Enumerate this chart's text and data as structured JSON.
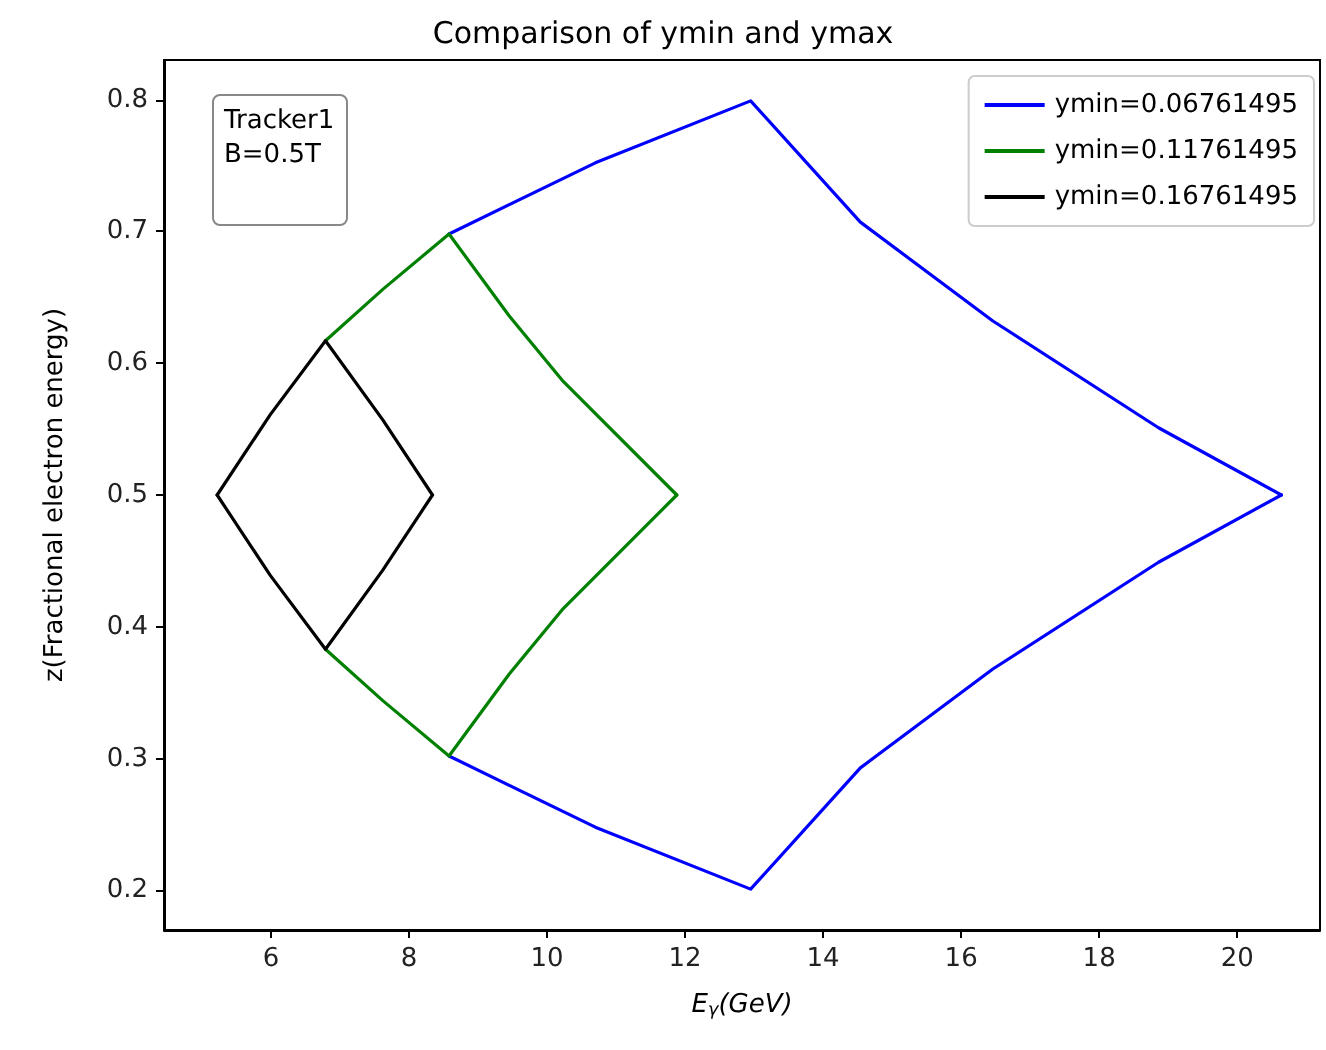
{
  "chart_data": {
    "type": "line",
    "title": "Comparison of ymin and ymax",
    "xlabel": "E$_{γ}$(GeV)",
    "ylabel": "z(Fractional electron energy)",
    "annotations": [
      "Tracker1\nB=0.5T"
    ],
    "xlim": [
      4.45,
      21.2
    ],
    "xticks": [
      6,
      8,
      10,
      12,
      14,
      16,
      18,
      20
    ],
    "ylim": [
      0.17,
      0.83
    ],
    "yticks": [
      0.2,
      0.3,
      0.4,
      0.5,
      0.6,
      0.7,
      0.8
    ],
    "grid": false,
    "legend": "top right",
    "marker": "none",
    "line_style": "solid",
    "series": [
      {
        "name": "ymin=0.06761495",
        "color": "#0000ff",
        "x": [
          8.58,
          10.7,
          12.95,
          14.54,
          16.46,
          18.86,
          20.64
        ],
        "values": [
          0.698,
          0.752,
          0.799,
          0.707,
          0.632,
          0.551,
          0.5
        ]
      },
      {
        "color": "#0000ff",
        "x": [
          8.58,
          10.7,
          12.95,
          14.54,
          16.46,
          18.86,
          20.64
        ],
        "values": [
          0.302,
          0.248,
          0.201,
          0.293,
          0.368,
          0.449,
          0.5
        ]
      },
      {
        "name": "ymin=0.11761495",
        "color": "#008000",
        "x": [
          6.79,
          7.62,
          8.58,
          9.45,
          10.22,
          11.88
        ],
        "values": [
          0.617,
          0.656,
          0.698,
          0.636,
          0.587,
          0.5
        ]
      },
      {
        "color": "#008000",
        "x": [
          6.79,
          7.62,
          8.58,
          9.45,
          10.22,
          11.88
        ],
        "values": [
          0.383,
          0.344,
          0.302,
          0.364,
          0.413,
          0.5
        ]
      },
      {
        "name": "ymin=0.16761495",
        "color": "#000000",
        "x": [
          5.22,
          5.99,
          6.79,
          7.62,
          8.34
        ],
        "values": [
          0.5,
          0.561,
          0.617,
          0.557,
          0.5
        ]
      },
      {
        "color": "#000000",
        "x": [
          5.22,
          5.99,
          6.79,
          7.62,
          8.34
        ],
        "values": [
          0.5,
          0.439,
          0.383,
          0.443,
          0.5
        ]
      }
    ]
  }
}
